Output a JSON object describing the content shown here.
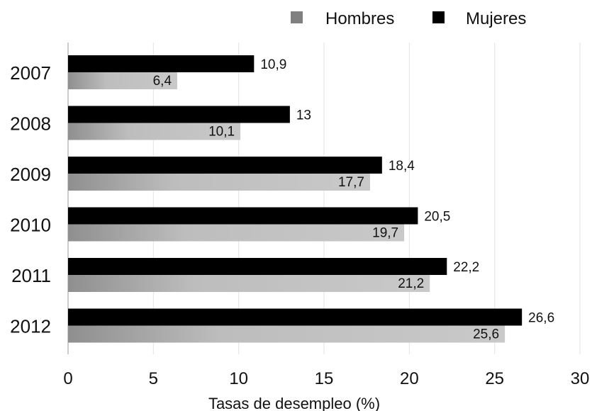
{
  "chart_data": {
    "type": "bar",
    "orientation": "horizontal",
    "categories": [
      "2007",
      "2008",
      "2009",
      "2010",
      "2011",
      "2012"
    ],
    "series": [
      {
        "name": "Hombres",
        "values": [
          6.4,
          10.1,
          17.7,
          19.7,
          21.2,
          25.6
        ],
        "labels": [
          "6,4",
          "10,1",
          "17,7",
          "19,7",
          "21,2",
          "25,6"
        ],
        "color": "#b8b8b8",
        "legend_color": "#808080"
      },
      {
        "name": "Mujeres",
        "values": [
          10.9,
          13,
          18.4,
          20.5,
          22.2,
          26.6
        ],
        "labels": [
          "10,9",
          "13",
          "18,4",
          "20,5",
          "22,2",
          "26,6"
        ],
        "color": "#000000",
        "legend_color": "#000000"
      }
    ],
    "title": "",
    "xlabel": "Tasas de desempleo (%)",
    "ylabel": "",
    "xlim": [
      0,
      30
    ],
    "xticks": [
      0,
      5,
      10,
      15,
      20,
      25,
      30
    ],
    "xtick_labels": [
      "0",
      "5",
      "10",
      "15",
      "20",
      "25",
      "30"
    ],
    "grid": true,
    "legend_position": "top-right"
  }
}
